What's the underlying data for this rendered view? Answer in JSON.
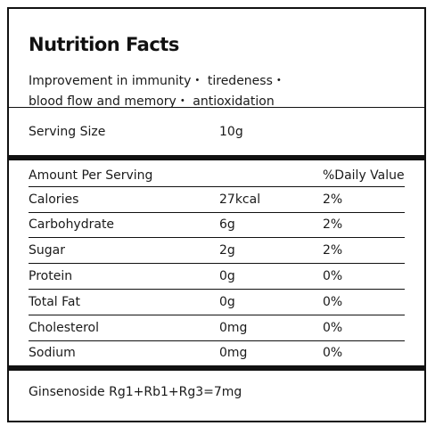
{
  "title": "Nutrition Facts",
  "subtitle_line1": "Improvement in immunity・ tiredeness・",
  "subtitle_line2": "blood flow and memory・ antioxidation",
  "serving": {
    "label": "Serving Size",
    "value": "10g"
  },
  "header": {
    "amount": "Amount Per Serving",
    "daily": "%Daily Value"
  },
  "rows": [
    {
      "name": "Calories",
      "amount": "27kcal",
      "daily": "2%"
    },
    {
      "name": "Carbohydrate",
      "amount": "6g",
      "daily": "2%"
    },
    {
      "name": "Sugar",
      "amount": "2g",
      "daily": "2%"
    },
    {
      "name": "Protein",
      "amount": "0g",
      "daily": "0%"
    },
    {
      "name": "Total Fat",
      "amount": "0g",
      "daily": "0%"
    },
    {
      "name": "Cholesterol",
      "amount": "0mg",
      "daily": "0%"
    },
    {
      "name": "Sodium",
      "amount": "0mg",
      "daily": "0%"
    }
  ],
  "footer": "Ginsenoside Rg1+Rb1+Rg3=7mg",
  "colors": {
    "border": "#111111",
    "text": "#1a1a1a",
    "background": "#ffffff"
  }
}
